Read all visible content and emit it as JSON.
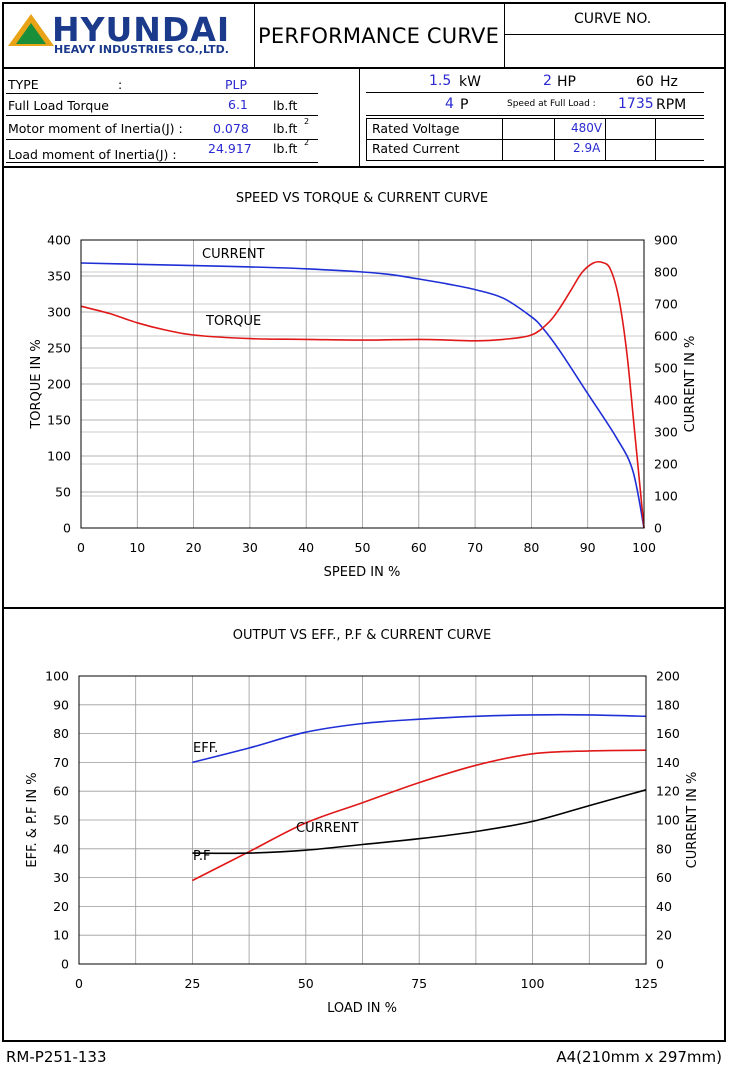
{
  "header": {
    "brand": "HYUNDAI",
    "brand_sub": "HEAVY INDUSTRIES CO.,LTD.",
    "title": "PERFORMANCE CURVE",
    "curve_no_label": "CURVE NO.",
    "curve_no_value": ""
  },
  "specs": {
    "type_label": "TYPE",
    "type_colon": ":",
    "type_value": "PLP",
    "torque_label": "Full Load Torque",
    "torque_value": "6.1",
    "torque_unit": "lb.ft",
    "motor_inertia_label": "Motor moment of Inertia(J) :",
    "motor_inertia_value": "0.078",
    "motor_inertia_unit": "lb.ft",
    "load_inertia_label": "Load moment of Inertia(J) :",
    "load_inertia_value": "24.917",
    "load_inertia_unit": "lb.ft",
    "sup2": "2"
  },
  "ratings": {
    "kw_value": "1.5",
    "kw_unit": "kW",
    "hp_value": "2",
    "hp_unit": "HP",
    "hz_value": "60",
    "hz_unit": "Hz",
    "poles_value": "4",
    "poles_unit": "P",
    "speed_label": "Speed at Full Load :",
    "speed_value": "1735",
    "speed_unit": "RPM",
    "voltage_label": "Rated Voltage",
    "voltage_value": "480V",
    "current_label": "Rated Current",
    "current_value": "2.9A"
  },
  "colors": {
    "blue_curve": "#1f2fd6",
    "red_curve": "#e01818",
    "black_curve": "#000000",
    "value_blue": "#2a2ad0",
    "grid": "#9a9a9a"
  },
  "chart_data": [
    {
      "type": "line",
      "title": "SPEED VS TORQUE & CURRENT CURVE",
      "xlabel": "SPEED IN %",
      "ylabel": "TORQUE IN %",
      "y2label": "CURRENT IN %",
      "xlim": [
        0,
        100
      ],
      "ylim": [
        0,
        400
      ],
      "y2lim": [
        0,
        900
      ],
      "xticks": [
        0,
        10,
        20,
        30,
        40,
        50,
        60,
        70,
        80,
        90,
        100
      ],
      "yticks": [
        0,
        50,
        100,
        150,
        200,
        250,
        300,
        350,
        400
      ],
      "y2ticks": [
        0,
        100,
        200,
        300,
        400,
        500,
        600,
        700,
        800,
        900
      ],
      "grid": true,
      "series": [
        {
          "name": "CURRENT",
          "axis": "right",
          "color": "#1f2fd6",
          "x": [
            0,
            10,
            20,
            30,
            40,
            50,
            55,
            60,
            65,
            70,
            75,
            80,
            82,
            85,
            90,
            95,
            98,
            100
          ],
          "y": [
            828,
            824,
            820,
            816,
            810,
            800,
            792,
            778,
            763,
            745,
            718,
            660,
            625,
            555,
            420,
            285,
            180,
            0
          ]
        },
        {
          "name": "TORQUE",
          "axis": "left",
          "color": "#e01818",
          "x": [
            0,
            5,
            10,
            15,
            20,
            30,
            40,
            50,
            60,
            65,
            70,
            75,
            80,
            83,
            85,
            87,
            89,
            91,
            92.5,
            94,
            95.5,
            97,
            98.5,
            100
          ],
          "y": [
            308,
            298,
            285,
            275,
            268,
            263,
            262,
            261,
            262,
            261,
            260,
            262,
            268,
            285,
            305,
            330,
            355,
            368,
            369,
            360,
            320,
            240,
            120,
            0
          ]
        }
      ],
      "annotations": [
        "CURRENT",
        "TORQUE"
      ]
    },
    {
      "type": "line",
      "title": "OUTPUT VS EFF., P.F & CURRENT CURVE",
      "xlabel": "LOAD IN %",
      "ylabel": "EFF. & P.F IN %",
      "y2label": "CURRENT IN %",
      "xlim": [
        0,
        125
      ],
      "ylim": [
        0,
        100
      ],
      "y2lim": [
        0,
        200
      ],
      "xticks": [
        0,
        25,
        50,
        75,
        100,
        125
      ],
      "yticks": [
        0,
        10,
        20,
        30,
        40,
        50,
        60,
        70,
        80,
        90,
        100
      ],
      "y2ticks": [
        0,
        20,
        40,
        60,
        80,
        100,
        120,
        140,
        160,
        180,
        200
      ],
      "grid": true,
      "series": [
        {
          "name": "EFF.",
          "axis": "left",
          "color": "#1f2fd6",
          "x": [
            25,
            37.5,
            50,
            62.5,
            75,
            87.5,
            100,
            112.5,
            125
          ],
          "y": [
            70,
            75,
            80.5,
            83.5,
            85,
            86,
            86.5,
            86.5,
            86
          ]
        },
        {
          "name": "CURRENT",
          "axis": "right",
          "color": "#e01818",
          "x": [
            25,
            37.5,
            50,
            62.5,
            75,
            87.5,
            100,
            112.5,
            125
          ],
          "y": [
            58,
            78,
            98,
            112,
            126,
            138,
            146,
            148,
            148.5
          ]
        },
        {
          "name": "P.F",
          "axis": "left",
          "color": "#000000",
          "x": [
            25,
            37.5,
            50,
            62.5,
            75,
            87.5,
            100,
            112.5,
            125
          ],
          "y": [
            38.5,
            38.5,
            39.5,
            41.5,
            43.5,
            46,
            49.5,
            55,
            60.5
          ]
        }
      ],
      "annotations": [
        "EFF.",
        "CURRENT",
        "P.F"
      ]
    }
  ],
  "footer": {
    "doc_no": "RM-P251-133",
    "paper_size": "A4(210mm x 297mm)"
  }
}
